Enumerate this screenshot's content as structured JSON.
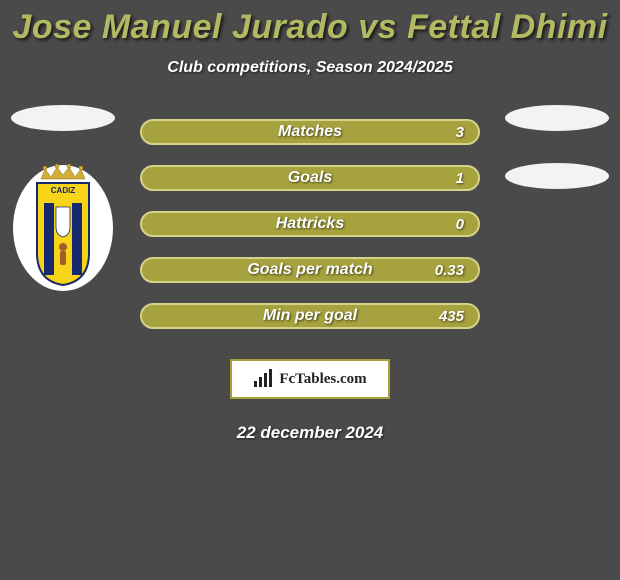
{
  "title": "Jose Manuel Jurado vs Fettal Dhimi",
  "subtitle": "Club competitions, Season 2024/2025",
  "date": "22 december 2024",
  "brand": "FcTables.com",
  "colors": {
    "title": "#b3b962",
    "subtitle": "#ffffff",
    "date": "#ffffff",
    "bar_fill": "#a6a23d",
    "bar_border": "#d6d28a",
    "backdrop": "#4a4a4a",
    "ellipse": "#f3f3f1"
  },
  "stats": [
    {
      "label": "Matches",
      "value": "3"
    },
    {
      "label": "Goals",
      "value": "1"
    },
    {
      "label": "Hattricks",
      "value": "0"
    },
    {
      "label": "Goals per match",
      "value": "0.33"
    },
    {
      "label": "Min per goal",
      "value": "435"
    }
  ],
  "crest": {
    "name": "CADIZ",
    "shield_fill": "#f7d417",
    "shield_stroke": "#16286e",
    "bar_color": "#16286e"
  }
}
